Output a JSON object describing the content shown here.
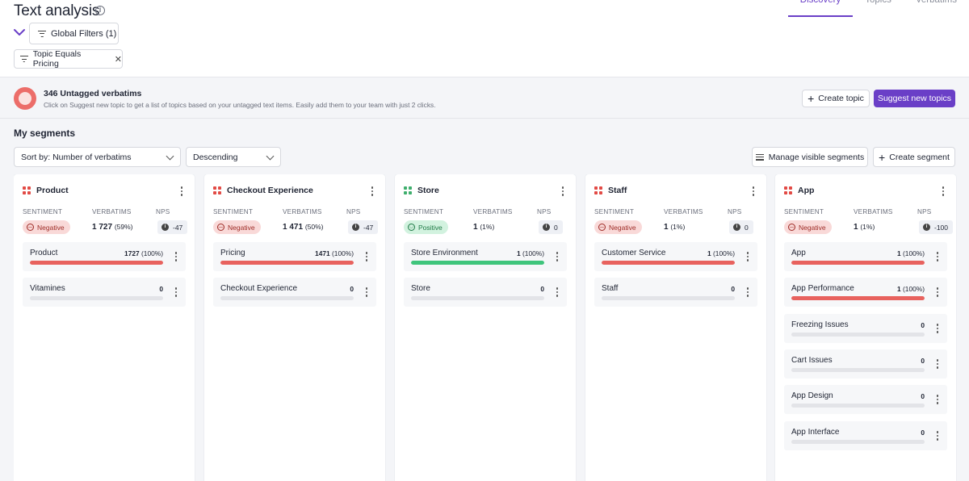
{
  "header": {
    "title": "Text analysis",
    "tabs": [
      {
        "label": "Discovery",
        "active": true
      },
      {
        "label": "Topics",
        "active": false
      },
      {
        "label": "Verbatims",
        "active": false
      }
    ],
    "global_filters_label": "Global Filters (1)",
    "filter_chip_label": "Topic Equals Pricing"
  },
  "banner": {
    "title": "346 Untagged verbatims",
    "subtitle": "Click on Suggest new topic to get a list of topics based on your untagged text items. Easily add them to your team with just 2 clicks.",
    "create_topic_label": "Create topic",
    "suggest_label": "Suggest new topics"
  },
  "segments": {
    "title": "My segments",
    "sort_label": "Sort by: Number of verbatims",
    "order_label": "Descending",
    "manage_label": "Manage visible segments",
    "create_label": "Create segment",
    "labels": {
      "sentiment": "SENTIMENT",
      "verbatims": "VERBATIMS",
      "nps": "NPS"
    }
  },
  "colors": {
    "accent": "#6a3fc7",
    "negative": "#e8625e",
    "positive": "#3fc57c",
    "icon_red": "#e24a45",
    "icon_green": "#3fae6d"
  },
  "cards": [
    {
      "name": "Product",
      "icon_color": "#e24a45",
      "sentiment": "Negative",
      "sentiment_type": "neg",
      "verbatims": "1 727",
      "verbatims_pct": "(59%)",
      "nps": "-47",
      "topics": [
        {
          "name": "Product",
          "count": "1727",
          "pct": "(100%)",
          "fill": 1,
          "color": "#e8625e"
        },
        {
          "name": "Vitamines",
          "count": "0",
          "pct": "",
          "fill": 0,
          "color": "#e8625e"
        }
      ]
    },
    {
      "name": "Checkout Experience",
      "icon_color": "#e24a45",
      "sentiment": "Negative",
      "sentiment_type": "neg",
      "verbatims": "1 471",
      "verbatims_pct": "(50%)",
      "nps": "-47",
      "topics": [
        {
          "name": "Pricing",
          "count": "1471",
          "pct": "(100%)",
          "fill": 1,
          "color": "#e8625e"
        },
        {
          "name": "Checkout Experience",
          "count": "0",
          "pct": "",
          "fill": 0,
          "color": "#e8625e"
        }
      ]
    },
    {
      "name": "Store",
      "icon_color": "#3fae6d",
      "sentiment": "Positive",
      "sentiment_type": "pos",
      "verbatims": "1",
      "verbatims_pct": "(1%)",
      "nps": "0",
      "topics": [
        {
          "name": "Store Environment",
          "count": "1",
          "pct": "(100%)",
          "fill": 1,
          "color": "#3fc57c"
        },
        {
          "name": "Store",
          "count": "0",
          "pct": "",
          "fill": 0,
          "color": "#3fc57c"
        }
      ]
    },
    {
      "name": "Staff",
      "icon_color": "#e24a45",
      "sentiment": "Negative",
      "sentiment_type": "neg",
      "verbatims": "1",
      "verbatims_pct": "(1%)",
      "nps": "0",
      "topics": [
        {
          "name": "Customer Service",
          "count": "1",
          "pct": "(100%)",
          "fill": 1,
          "color": "#e8625e"
        },
        {
          "name": "Staff",
          "count": "0",
          "pct": "",
          "fill": 0,
          "color": "#e8625e"
        }
      ]
    },
    {
      "name": "App",
      "icon_color": "#e24a45",
      "sentiment": "Negative",
      "sentiment_type": "neg",
      "verbatims": "1",
      "verbatims_pct": "(1%)",
      "nps": "-100",
      "topics": [
        {
          "name": "App",
          "count": "1",
          "pct": "(100%)",
          "fill": 1,
          "color": "#e8625e"
        },
        {
          "name": "App Performance",
          "count": "1",
          "pct": "(100%)",
          "fill": 1,
          "color": "#e8625e"
        },
        {
          "name": "Freezing Issues",
          "count": "0",
          "pct": "",
          "fill": 0,
          "color": "#e8625e"
        },
        {
          "name": "Cart Issues",
          "count": "0",
          "pct": "",
          "fill": 0,
          "color": "#e8625e"
        },
        {
          "name": "App Design",
          "count": "0",
          "pct": "",
          "fill": 0,
          "color": "#e8625e"
        },
        {
          "name": "App Interface",
          "count": "0",
          "pct": "",
          "fill": 0,
          "color": "#e8625e"
        }
      ]
    }
  ]
}
